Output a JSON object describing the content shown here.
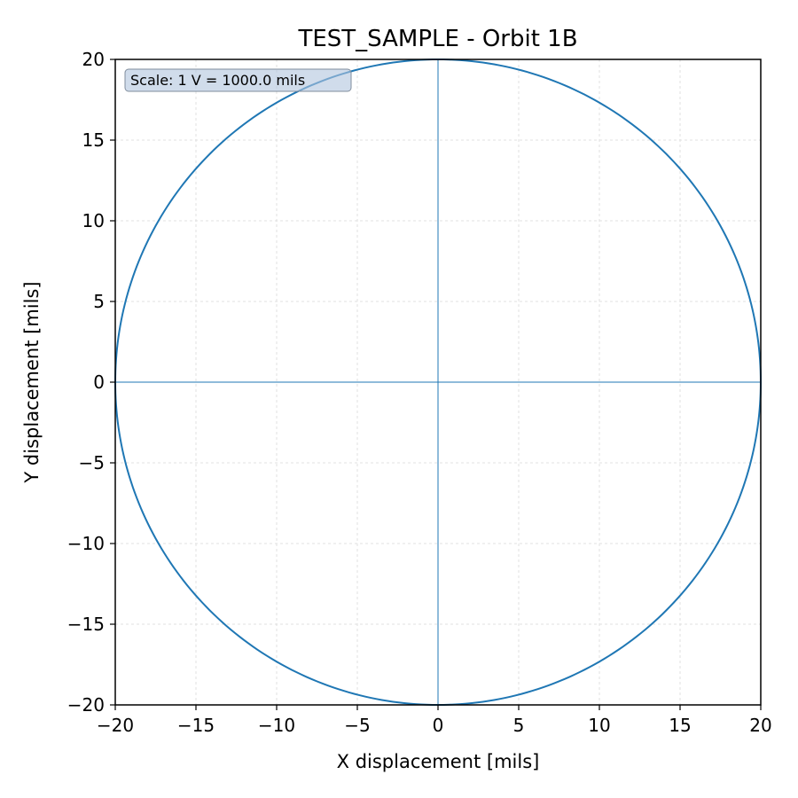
{
  "chart_data": {
    "type": "line",
    "title": "TEST_SAMPLE - Orbit 1B",
    "xlabel": "X displacement [mils]",
    "ylabel": "Y displacement [mils]",
    "xlim": [
      -20,
      20
    ],
    "ylim": [
      -20,
      20
    ],
    "xticks": [
      -20,
      -15,
      -10,
      -5,
      0,
      5,
      10,
      15,
      20
    ],
    "yticks": [
      -20,
      -15,
      -10,
      -5,
      0,
      5,
      10,
      15,
      20
    ],
    "grid": true,
    "annotation": "Scale: 1 V = 1000.0 mils",
    "annotation_position": "top-left",
    "series": [
      {
        "shape": "circle",
        "center": [
          0,
          0
        ],
        "radius": 20,
        "color": "#1f77b4"
      }
    ],
    "reference_lines": {
      "x": 0,
      "y": 0,
      "color": "#1f77b4"
    }
  }
}
